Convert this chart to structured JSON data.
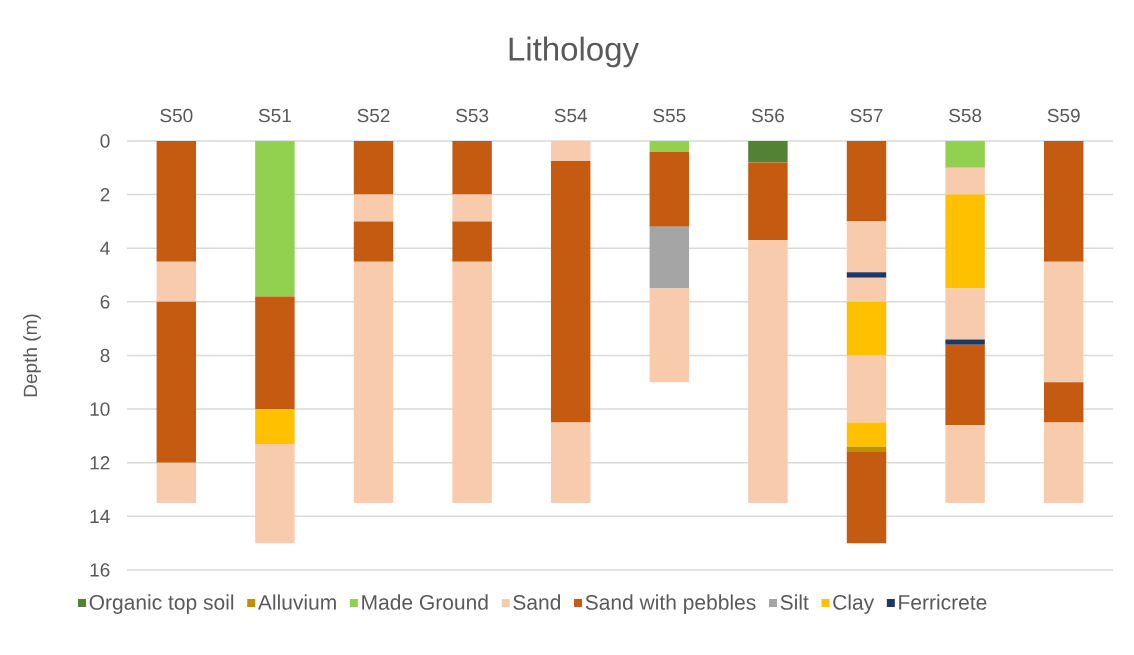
{
  "chart_data": {
    "type": "bar",
    "stacked": true,
    "title": "Lithology",
    "ylabel": "Depth (m)",
    "categories": [
      "S50",
      "S51",
      "S52",
      "S53",
      "S54",
      "S55",
      "S56",
      "S57",
      "S58",
      "S59"
    ],
    "ylim": [
      16,
      0
    ],
    "yticks": [
      0,
      2,
      4,
      6,
      8,
      10,
      12,
      14,
      16
    ],
    "grid": "y",
    "legend": "bottom",
    "series": [
      {
        "values": [
          4.5,
          5.8,
          2,
          2,
          0.75,
          0.4,
          0.8,
          3,
          1,
          4.5
        ],
        "colors": [
          "#c55a11",
          "#92d050",
          "#c55a11",
          "#c55a11",
          "#f8cbad",
          "#92d050",
          "#548235",
          "#c55a11",
          "#92d050",
          "#c55a11"
        ]
      },
      {
        "values": [
          1.5,
          4.2,
          1,
          1,
          9.75,
          2.8,
          2.9,
          1.9,
          1,
          4.5
        ],
        "colors": [
          "#f8cbad",
          "#c55a11",
          "#f8cbad",
          "#f8cbad",
          "#c55a11",
          "#c55a11",
          "#c55a11",
          "#f8cbad",
          "#f8cbad",
          "#f8cbad"
        ]
      },
      {
        "values": [
          6,
          1.3,
          1.5,
          1.5,
          3,
          2.3,
          9.8,
          0.2,
          3.5,
          1.5
        ],
        "colors": [
          "#c55a11",
          "#ffc000",
          "#c55a11",
          "#c55a11",
          "#f8cbad",
          "#a5a5a5",
          "#f8cbad",
          "#203864",
          "#ffc000",
          "#c55a11"
        ]
      },
      {
        "values": [
          1.5,
          3.7,
          9,
          9,
          null,
          3.5,
          null,
          0.9,
          1.9,
          3
        ],
        "colors": [
          "#f8cbad",
          "#f8cbad",
          "#f8cbad",
          "#f8cbad",
          null,
          "#f8cbad",
          null,
          "#f8cbad",
          "#f8cbad",
          "#f8cbad"
        ]
      },
      {
        "values": [
          null,
          null,
          null,
          null,
          null,
          null,
          null,
          2,
          0.2,
          null
        ],
        "colors": [
          null,
          null,
          null,
          null,
          null,
          null,
          null,
          "#ffc000",
          "#203864",
          null
        ]
      },
      {
        "values": [
          null,
          null,
          null,
          null,
          null,
          null,
          null,
          2.5,
          3,
          null
        ],
        "colors": [
          null,
          null,
          null,
          null,
          null,
          null,
          null,
          "#f8cbad",
          "#c55a11",
          null
        ]
      },
      {
        "values": [
          null,
          null,
          null,
          null,
          null,
          null,
          null,
          0.9,
          0.4,
          null
        ],
        "colors": [
          null,
          null,
          null,
          null,
          null,
          null,
          null,
          "#ffc000",
          "#f8cbad",
          null
        ]
      },
      {
        "values": [
          null,
          null,
          null,
          null,
          null,
          null,
          null,
          0.2,
          2.5,
          null
        ],
        "colors": [
          null,
          null,
          null,
          null,
          null,
          null,
          null,
          "#bf9000",
          "#f8cbad",
          null
        ]
      },
      {
        "values": [
          null,
          null,
          null,
          null,
          null,
          null,
          null,
          3.4,
          null,
          null
        ],
        "colors": [
          null,
          null,
          null,
          null,
          null,
          null,
          null,
          "#c55a11",
          null,
          null
        ]
      },
      {
        "name": "Organic top soil",
        "color": "#548235",
        "values": [
          null,
          null,
          null,
          null,
          null,
          null,
          null,
          null,
          null,
          null
        ]
      },
      {
        "name": "Alluvium",
        "color": "#bf9000",
        "values": [
          null,
          null,
          null,
          null,
          null,
          null,
          null,
          null,
          null,
          null
        ]
      },
      {
        "name": "Made Ground",
        "color": "#92d050",
        "values": [
          null,
          null,
          null,
          null,
          null,
          null,
          null,
          null,
          null,
          null
        ]
      },
      {
        "name": "Sand",
        "color": "#f8cbad",
        "values": [
          null,
          null,
          null,
          null,
          null,
          null,
          null,
          null,
          null,
          null
        ]
      },
      {
        "name": "Sand with pebbles",
        "color": "#c55a11",
        "values": [
          null,
          null,
          null,
          null,
          null,
          null,
          null,
          null,
          null,
          null
        ]
      },
      {
        "name": "Silt",
        "color": "#a5a5a5",
        "values": [
          null,
          null,
          null,
          null,
          null,
          null,
          null,
          null,
          null,
          null
        ]
      },
      {
        "name": "Clay",
        "color": "#ffc000",
        "values": [
          null,
          null,
          null,
          null,
          null,
          null,
          null,
          null,
          null,
          null
        ]
      },
      {
        "name": "Ferricrete",
        "color": "#203864",
        "values": [
          null,
          null,
          null,
          null,
          null,
          null,
          null,
          null,
          null,
          null
        ]
      }
    ]
  }
}
